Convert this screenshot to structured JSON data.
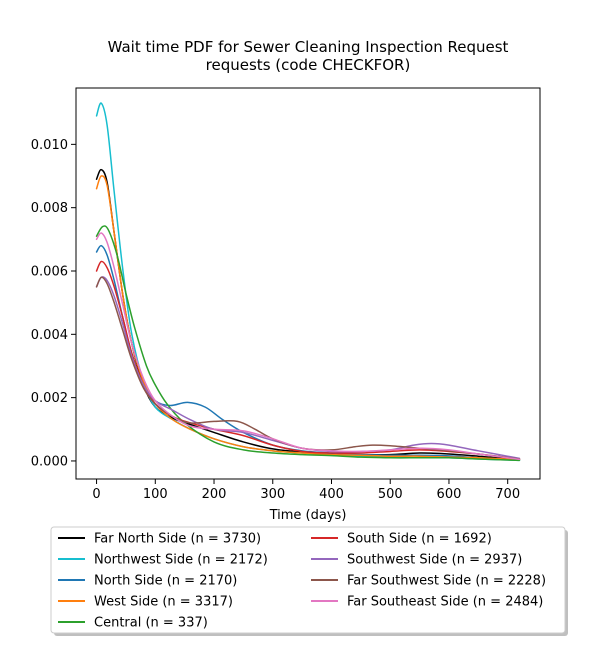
{
  "chart_data": {
    "type": "line",
    "title": "Wait time PDF for Sewer Cleaning Inspection Request\nrequests (code CHECKFOR)",
    "xlabel": "Time (days)",
    "ylabel": "",
    "xlim": [
      -35,
      755
    ],
    "ylim": [
      -0.00057,
      0.01178
    ],
    "xticks": [
      0,
      100,
      200,
      300,
      400,
      500,
      600,
      700
    ],
    "xtick_labels": [
      "0",
      "100",
      "200",
      "300",
      "400",
      "500",
      "600",
      "700"
    ],
    "yticks": [
      0.0,
      0.002,
      0.004,
      0.006,
      0.008,
      0.01
    ],
    "ytick_labels": [
      "0.000",
      "0.002",
      "0.004",
      "0.006",
      "0.008",
      "0.010"
    ],
    "grid": false,
    "legend": {
      "placement": "below",
      "columns": 2
    },
    "series": [
      {
        "name": "Far North Side (n = 3730)",
        "color": "#000000",
        "points": [
          [
            0,
            0.0089
          ],
          [
            8,
            0.0092
          ],
          [
            18,
            0.0088
          ],
          [
            30,
            0.0072
          ],
          [
            45,
            0.0052
          ],
          [
            60,
            0.0037
          ],
          [
            80,
            0.0024
          ],
          [
            100,
            0.0017
          ],
          [
            130,
            0.00135
          ],
          [
            160,
            0.00115
          ],
          [
            200,
            0.0009
          ],
          [
            250,
            0.0006
          ],
          [
            300,
            0.00038
          ],
          [
            350,
            0.00028
          ],
          [
            400,
            0.00024
          ],
          [
            450,
            0.0002
          ],
          [
            500,
            0.0002
          ],
          [
            550,
            0.00025
          ],
          [
            600,
            0.00022
          ],
          [
            650,
            0.00015
          ],
          [
            720,
            4e-05
          ]
        ]
      },
      {
        "name": "Northwest Side (n = 2172)",
        "color": "#17becf",
        "points": [
          [
            0,
            0.0109
          ],
          [
            8,
            0.0113
          ],
          [
            18,
            0.0106
          ],
          [
            30,
            0.0085
          ],
          [
            45,
            0.006
          ],
          [
            60,
            0.004
          ],
          [
            80,
            0.0025
          ],
          [
            100,
            0.0017
          ],
          [
            130,
            0.0013
          ],
          [
            160,
            0.001
          ],
          [
            200,
            0.0007
          ],
          [
            250,
            0.00045
          ],
          [
            300,
            0.00032
          ],
          [
            350,
            0.00025
          ],
          [
            400,
            0.0002
          ],
          [
            450,
            0.00015
          ],
          [
            500,
            0.00012
          ],
          [
            550,
            0.0001
          ],
          [
            600,
            0.0001
          ],
          [
            650,
            6e-05
          ],
          [
            720,
            2e-05
          ]
        ]
      },
      {
        "name": "North Side (n = 2170)",
        "color": "#1f77b4",
        "points": [
          [
            0,
            0.0066
          ],
          [
            8,
            0.0068
          ],
          [
            18,
            0.0065
          ],
          [
            30,
            0.0057
          ],
          [
            45,
            0.0045
          ],
          [
            60,
            0.0034
          ],
          [
            80,
            0.0024
          ],
          [
            100,
            0.0019
          ],
          [
            125,
            0.00175
          ],
          [
            155,
            0.00185
          ],
          [
            185,
            0.0017
          ],
          [
            215,
            0.0013
          ],
          [
            250,
            0.0009
          ],
          [
            300,
            0.0005
          ],
          [
            350,
            0.00032
          ],
          [
            400,
            0.00025
          ],
          [
            450,
            0.0002
          ],
          [
            500,
            0.00018
          ],
          [
            550,
            0.00018
          ],
          [
            600,
            0.00016
          ],
          [
            650,
            0.0001
          ],
          [
            720,
            3e-05
          ]
        ]
      },
      {
        "name": "West Side (n = 3317)",
        "color": "#ff7f0e",
        "points": [
          [
            0,
            0.0086
          ],
          [
            8,
            0.009
          ],
          [
            18,
            0.0087
          ],
          [
            30,
            0.0072
          ],
          [
            45,
            0.0052
          ],
          [
            60,
            0.0037
          ],
          [
            80,
            0.0025
          ],
          [
            100,
            0.0018
          ],
          [
            130,
            0.0013
          ],
          [
            160,
            0.001
          ],
          [
            200,
            0.0007
          ],
          [
            250,
            0.00045
          ],
          [
            300,
            0.00032
          ],
          [
            350,
            0.00025
          ],
          [
            400,
            0.0002
          ],
          [
            450,
            0.00018
          ],
          [
            500,
            0.00015
          ],
          [
            550,
            0.00015
          ],
          [
            600,
            0.00012
          ],
          [
            650,
            0.0001
          ],
          [
            720,
            4e-05
          ]
        ]
      },
      {
        "name": "Central (n = 337)",
        "color": "#2ca02c",
        "points": [
          [
            0,
            0.0071
          ],
          [
            10,
            0.0074
          ],
          [
            20,
            0.0073
          ],
          [
            35,
            0.0065
          ],
          [
            50,
            0.0053
          ],
          [
            65,
            0.0042
          ],
          [
            85,
            0.003
          ],
          [
            100,
            0.0024
          ],
          [
            120,
            0.0018
          ],
          [
            150,
            0.0012
          ],
          [
            200,
            0.0006
          ],
          [
            250,
            0.00035
          ],
          [
            300,
            0.00025
          ],
          [
            350,
            0.0002
          ],
          [
            400,
            0.00017
          ],
          [
            450,
            0.00012
          ],
          [
            500,
            0.0001
          ],
          [
            550,
            0.0001
          ],
          [
            600,
            0.0001
          ],
          [
            650,
            6e-05
          ],
          [
            720,
            2e-05
          ]
        ]
      },
      {
        "name": "South Side (n = 1692)",
        "color": "#d62728",
        "points": [
          [
            0,
            0.006
          ],
          [
            8,
            0.0063
          ],
          [
            18,
            0.0061
          ],
          [
            30,
            0.0055
          ],
          [
            45,
            0.0045
          ],
          [
            60,
            0.0034
          ],
          [
            80,
            0.0024
          ],
          [
            100,
            0.0018
          ],
          [
            130,
            0.0014
          ],
          [
            160,
            0.0012
          ],
          [
            200,
            0.001
          ],
          [
            250,
            0.0008
          ],
          [
            300,
            0.0005
          ],
          [
            350,
            0.0003
          ],
          [
            400,
            0.00025
          ],
          [
            450,
            0.00025
          ],
          [
            500,
            0.0003
          ],
          [
            550,
            0.00035
          ],
          [
            600,
            0.0003
          ],
          [
            650,
            0.00022
          ],
          [
            720,
            6e-05
          ]
        ]
      },
      {
        "name": "Southwest Side (n = 2937)",
        "color": "#9467bd",
        "points": [
          [
            0,
            0.0055
          ],
          [
            8,
            0.0058
          ],
          [
            18,
            0.0057
          ],
          [
            30,
            0.0052
          ],
          [
            45,
            0.0043
          ],
          [
            60,
            0.0033
          ],
          [
            80,
            0.0024
          ],
          [
            100,
            0.0019
          ],
          [
            130,
            0.0016
          ],
          [
            160,
            0.0013
          ],
          [
            200,
            0.001
          ],
          [
            250,
            0.0009
          ],
          [
            300,
            0.00065
          ],
          [
            350,
            0.0004
          ],
          [
            400,
            0.0003
          ],
          [
            450,
            0.0003
          ],
          [
            500,
            0.00035
          ],
          [
            540,
            0.0005
          ],
          [
            570,
            0.00055
          ],
          [
            600,
            0.0005
          ],
          [
            650,
            0.00032
          ],
          [
            720,
            8e-05
          ]
        ]
      },
      {
        "name": "Far Southwest Side (n = 2228)",
        "color": "#8c564b",
        "points": [
          [
            0,
            0.0055
          ],
          [
            8,
            0.0058
          ],
          [
            18,
            0.0056
          ],
          [
            30,
            0.005
          ],
          [
            45,
            0.0041
          ],
          [
            60,
            0.0032
          ],
          [
            80,
            0.0023
          ],
          [
            100,
            0.0018
          ],
          [
            130,
            0.0014
          ],
          [
            160,
            0.0012
          ],
          [
            200,
            0.00125
          ],
          [
            240,
            0.00125
          ],
          [
            270,
            0.001
          ],
          [
            300,
            0.0007
          ],
          [
            350,
            0.0004
          ],
          [
            400,
            0.00035
          ],
          [
            440,
            0.00045
          ],
          [
            470,
            0.0005
          ],
          [
            500,
            0.00048
          ],
          [
            550,
            0.0004
          ],
          [
            600,
            0.00032
          ],
          [
            650,
            0.00022
          ],
          [
            720,
            6e-05
          ]
        ]
      },
      {
        "name": "Far Southeast Side (n = 2484)",
        "color": "#e377c2",
        "points": [
          [
            0,
            0.007
          ],
          [
            8,
            0.0072
          ],
          [
            18,
            0.0069
          ],
          [
            30,
            0.0061
          ],
          [
            45,
            0.0049
          ],
          [
            60,
            0.0037
          ],
          [
            80,
            0.0026
          ],
          [
            100,
            0.0019
          ],
          [
            130,
            0.0014
          ],
          [
            160,
            0.0011
          ],
          [
            200,
            0.001
          ],
          [
            250,
            0.00095
          ],
          [
            300,
            0.0007
          ],
          [
            350,
            0.0004
          ],
          [
            400,
            0.00032
          ],
          [
            450,
            0.0003
          ],
          [
            500,
            0.00035
          ],
          [
            550,
            0.0004
          ],
          [
            600,
            0.00035
          ],
          [
            650,
            0.00022
          ],
          [
            720,
            5e-05
          ]
        ]
      }
    ]
  }
}
